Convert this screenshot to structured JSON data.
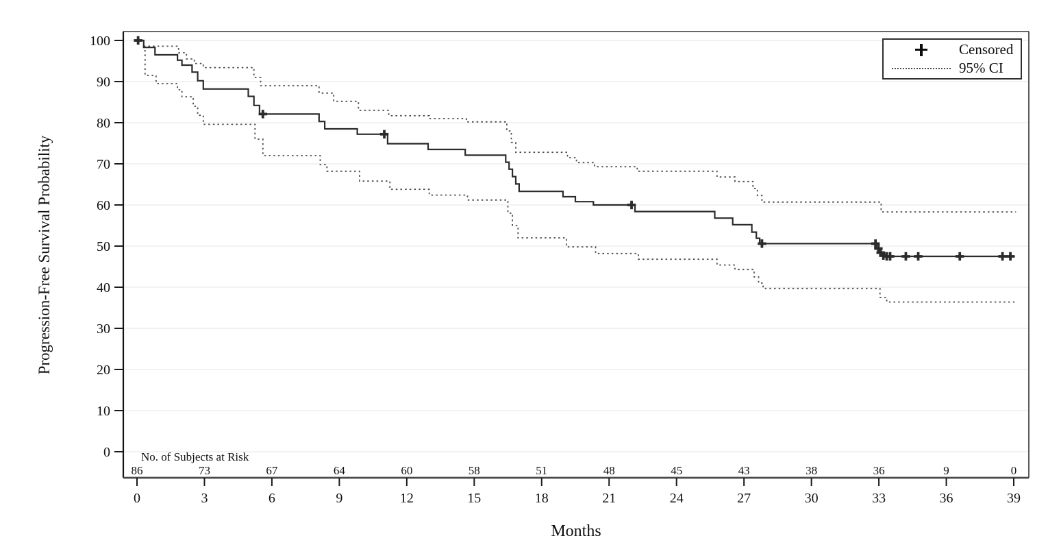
{
  "colors": {
    "curve": "#2b2b2b",
    "ci": "#4d4d4d",
    "grid": "#ebebeb",
    "frame": "#333333",
    "axis": "#1a1a1a",
    "text": "#101010"
  },
  "chart_data": {
    "type": "line",
    "subtype": "kaplan-meier-step",
    "title": "",
    "xlabel": "Months",
    "ylabel": "Progression-Free Survival Probability",
    "xlim": [
      0,
      39
    ],
    "ylim": [
      0,
      100
    ],
    "x_ticks": [
      0,
      3,
      6,
      9,
      12,
      15,
      18,
      21,
      24,
      27,
      30,
      33,
      36,
      39
    ],
    "y_ticks": [
      0,
      10,
      20,
      30,
      40,
      50,
      60,
      70,
      80,
      90,
      100
    ],
    "grid": "horizontal",
    "legend": {
      "position": "top-right",
      "censored_label": "Censored",
      "censored_symbol": "+",
      "ci_label": "95% CI"
    },
    "at_risk": {
      "label": "No. of Subjects at Risk",
      "months": [
        0,
        3,
        6,
        9,
        12,
        15,
        18,
        21,
        24,
        27,
        30,
        33,
        36,
        39
      ],
      "counts": [
        86,
        73,
        67,
        64,
        60,
        58,
        51,
        48,
        45,
        43,
        38,
        36,
        9,
        0
      ]
    },
    "series": [
      {
        "name": "Progression-free survival",
        "style": "solid-step",
        "points": [
          [
            0,
            100
          ],
          [
            0.3,
            98.3
          ],
          [
            0.8,
            96.5
          ],
          [
            1.8,
            95.2
          ],
          [
            2.0,
            94.0
          ],
          [
            2.45,
            92.3
          ],
          [
            2.7,
            90.2
          ],
          [
            2.95,
            88.2
          ],
          [
            4.95,
            86.4
          ],
          [
            5.2,
            84.2
          ],
          [
            5.45,
            82.1
          ],
          [
            8.1,
            80.3
          ],
          [
            8.35,
            78.5
          ],
          [
            9.8,
            77.2
          ],
          [
            11.15,
            74.9
          ],
          [
            12.95,
            73.5
          ],
          [
            14.6,
            72.1
          ],
          [
            16.4,
            70.4
          ],
          [
            16.55,
            68.7
          ],
          [
            16.7,
            66.9
          ],
          [
            16.85,
            65.1
          ],
          [
            17.0,
            63.3
          ],
          [
            18.95,
            62.0
          ],
          [
            19.5,
            60.8
          ],
          [
            20.3,
            60.0
          ],
          [
            22.15,
            58.4
          ],
          [
            25.7,
            56.8
          ],
          [
            26.5,
            55.2
          ],
          [
            27.35,
            53.4
          ],
          [
            27.55,
            51.9
          ],
          [
            27.7,
            50.6
          ],
          [
            32.95,
            49.4
          ],
          [
            33.1,
            48.4
          ],
          [
            33.25,
            47.5
          ],
          [
            39.05,
            47.5
          ]
        ]
      },
      {
        "name": "95% CI upper",
        "style": "dotted-step",
        "points": [
          [
            0.3,
            98.6
          ],
          [
            1.85,
            97.0
          ],
          [
            2.2,
            95.5
          ],
          [
            2.55,
            94.4
          ],
          [
            2.95,
            93.4
          ],
          [
            5.2,
            91.0
          ],
          [
            5.5,
            89.0
          ],
          [
            8.1,
            87.2
          ],
          [
            8.75,
            85.2
          ],
          [
            9.85,
            83.0
          ],
          [
            11.2,
            81.7
          ],
          [
            13.0,
            81.0
          ],
          [
            14.65,
            80.2
          ],
          [
            16.45,
            78.0
          ],
          [
            16.65,
            75.2
          ],
          [
            16.85,
            72.8
          ],
          [
            19.15,
            71.5
          ],
          [
            19.55,
            70.3
          ],
          [
            20.35,
            69.3
          ],
          [
            22.25,
            68.2
          ],
          [
            25.8,
            66.8
          ],
          [
            26.6,
            65.7
          ],
          [
            27.4,
            64.0
          ],
          [
            27.6,
            62.3
          ],
          [
            27.8,
            60.7
          ],
          [
            33.1,
            58.3
          ],
          [
            39.1,
            58.3
          ]
        ]
      },
      {
        "name": "95% CI lower",
        "style": "dotted-step",
        "points": [
          [
            0.32,
            97.5
          ],
          [
            0.36,
            91.5
          ],
          [
            0.85,
            89.5
          ],
          [
            1.8,
            88.0
          ],
          [
            2.0,
            86.3
          ],
          [
            2.5,
            84.0
          ],
          [
            2.7,
            81.8
          ],
          [
            2.95,
            79.6
          ],
          [
            5.25,
            76.0
          ],
          [
            5.6,
            72.0
          ],
          [
            8.15,
            69.8
          ],
          [
            8.45,
            68.2
          ],
          [
            9.9,
            65.8
          ],
          [
            11.25,
            63.8
          ],
          [
            13.0,
            62.4
          ],
          [
            14.7,
            61.2
          ],
          [
            16.5,
            58.0
          ],
          [
            16.7,
            55.0
          ],
          [
            16.95,
            52.0
          ],
          [
            19.1,
            49.8
          ],
          [
            20.4,
            48.2
          ],
          [
            22.3,
            46.8
          ],
          [
            25.8,
            45.4
          ],
          [
            26.6,
            44.3
          ],
          [
            27.45,
            42.5
          ],
          [
            27.65,
            41.0
          ],
          [
            27.85,
            39.7
          ],
          [
            33.05,
            37.5
          ],
          [
            33.35,
            36.4
          ],
          [
            39.1,
            36.4
          ]
        ]
      }
    ],
    "censored_points": [
      [
        0.05,
        100
      ],
      [
        5.6,
        82.1
      ],
      [
        11.0,
        77.2
      ],
      [
        22.0,
        60.0
      ],
      [
        27.8,
        50.6
      ],
      [
        32.85,
        50.6
      ],
      [
        32.98,
        49.4
      ],
      [
        33.08,
        48.4
      ],
      [
        33.2,
        47.7
      ],
      [
        33.35,
        47.5
      ],
      [
        33.5,
        47.5
      ],
      [
        34.2,
        47.5
      ],
      [
        34.75,
        47.5
      ],
      [
        36.6,
        47.5
      ],
      [
        38.5,
        47.5
      ],
      [
        38.85,
        47.5
      ]
    ]
  }
}
